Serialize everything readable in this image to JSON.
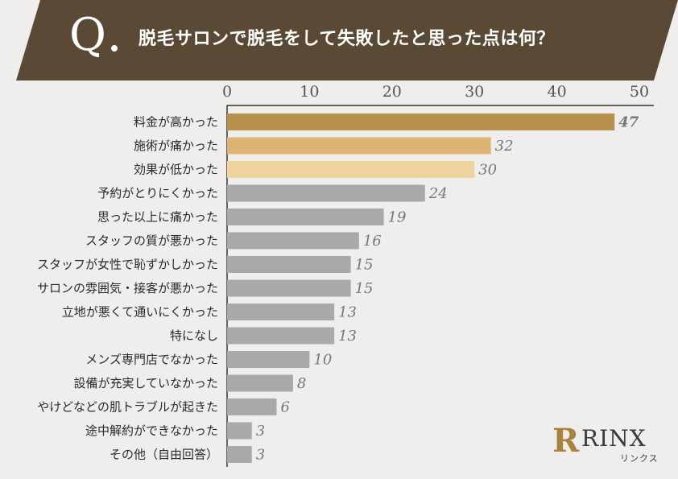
{
  "header": {
    "q_letter": "Q",
    "title": "脱毛サロンで脱毛をして失敗したと思った点は何？",
    "banner_color": "#5a4a35"
  },
  "brand": {
    "mark": "R",
    "name": "RINX",
    "sub": "リンクス",
    "mark_color": "#a8823e"
  },
  "chart_data": {
    "type": "bar",
    "orientation": "horizontal",
    "categories": [
      "料金が高かった",
      "施術が痛かった",
      "効果が低かった",
      "予約がとりにくかった",
      "思った以上に痛かった",
      "スタッフの質が悪かった",
      "スタッフが女性で恥ずかしかった",
      "サロンの雰囲気・接客が悪かった",
      "立地が悪くて通いにくかった",
      "特になし",
      "メンズ専門店でなかった",
      "設備が充実していなかった",
      "やけどなどの肌トラブルが起きた",
      "途中解約ができなかった",
      "その他（自由回答）"
    ],
    "values": [
      47,
      32,
      30,
      24,
      19,
      16,
      15,
      15,
      13,
      13,
      10,
      8,
      6,
      3,
      3
    ],
    "xticks": [
      "0",
      "10",
      "20",
      "30",
      "40",
      "50"
    ],
    "xlim": [
      0,
      52
    ],
    "bar_colors": [
      "#b8914f",
      "#ddb474",
      "#eed39e",
      "#aaa8a9",
      "#aaa8a9",
      "#aaa8a9",
      "#aaa8a9",
      "#aaa8a9",
      "#aaa8a9",
      "#aaa8a9",
      "#aaa8a9",
      "#aaa8a9",
      "#aaa8a9",
      "#aaa8a9",
      "#aaa8a9"
    ],
    "label_colors": [
      "#8d6a2c",
      "#b78a3f",
      "#b78a3f",
      "#777777",
      "#777777",
      "#777777",
      "#777777",
      "#777777",
      "#777777",
      "#777777",
      "#777777",
      "#777777",
      "#777777",
      "#777777",
      "#777777"
    ],
    "axis_ticks_position": "top",
    "grid": false
  }
}
